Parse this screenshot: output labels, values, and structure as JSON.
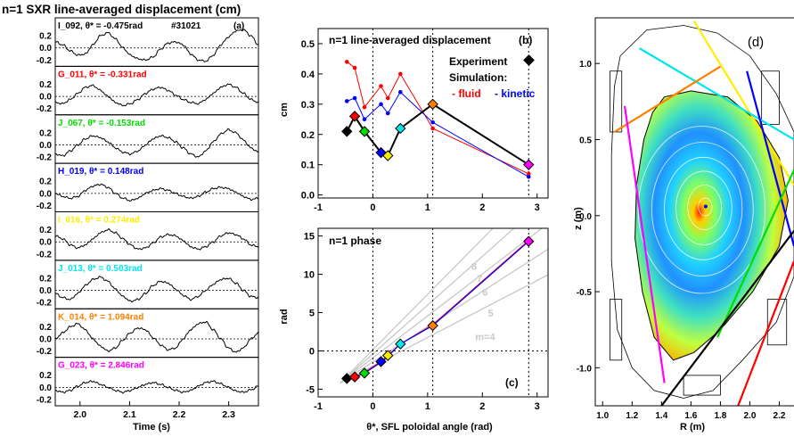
{
  "figure_title": "n=1 SXR line-averaged displacement (cm)",
  "chart_data": [
    {
      "id": "a",
      "type": "line",
      "panel_label": "(a)",
      "shot": "#31021",
      "xlabel": "Time (s)",
      "xlim": [
        1.95,
        2.36
      ],
      "x_ticks": [
        "2.0",
        "2.1",
        "2.2",
        "2.3"
      ],
      "y_ticks": [
        "0.2",
        "0.0",
        "-0.2"
      ],
      "color_map": {
        "black": "#000000",
        "red": "#ff0000",
        "green": "#00dd00",
        "blue": "#0000ff",
        "yellow": "#ffee00",
        "cyan": "#00e5ee",
        "orange": "#ff8000",
        "magenta": "#ff00ff"
      },
      "series": [
        {
          "name": "I_092, θ* = -0.475rad",
          "color": "black",
          "values": [
            0.1,
            0.05,
            -0.05,
            -0.12,
            -0.1,
            0.05,
            0.2,
            0.25,
            0.15,
            0.0,
            -0.12,
            -0.18,
            -0.2,
            -0.15,
            -0.02,
            0.08,
            0.1,
            0.05,
            -0.1,
            -0.2,
            -0.22,
            -0.12,
            0.05,
            0.18,
            0.28,
            0.3,
            0.2,
            0.05
          ]
        },
        {
          "name": "G_011, θ* = -0.331rad",
          "color": "red",
          "values": [
            -0.1,
            -0.12,
            -0.05,
            0.05,
            0.15,
            0.18,
            0.1,
            0.0,
            -0.1,
            -0.15,
            -0.12,
            -0.05,
            0.05,
            0.12,
            0.15,
            0.1,
            0.02,
            -0.05,
            -0.1,
            -0.12,
            -0.05,
            0.05,
            0.15,
            0.2,
            0.15,
            0.05,
            -0.05,
            -0.1
          ]
        },
        {
          "name": "J_067, θ* = -0.153rad",
          "color": "green",
          "values": [
            -0.15,
            -0.18,
            -0.1,
            0.0,
            0.1,
            0.15,
            0.12,
            0.05,
            -0.05,
            -0.12,
            -0.15,
            -0.1,
            0.0,
            0.1,
            0.15,
            0.12,
            0.05,
            -0.05,
            -0.15,
            -0.2,
            -0.1,
            0.05,
            0.18,
            0.25,
            0.2,
            0.08,
            -0.05,
            -0.12
          ]
        },
        {
          "name": "H_019, θ* = 0.148rad",
          "color": "blue",
          "values": [
            0.0,
            -0.05,
            -0.08,
            -0.05,
            0.05,
            0.12,
            0.15,
            0.1,
            0.0,
            -0.08,
            -0.12,
            -0.08,
            0.0,
            0.05,
            0.08,
            0.05,
            0.0,
            -0.05,
            -0.08,
            -0.05,
            0.02,
            0.08,
            0.1,
            0.08,
            0.02,
            -0.05,
            -0.1,
            -0.08
          ]
        },
        {
          "name": "I_016, θ* = 0.274rad",
          "color": "yellow",
          "values": [
            0.1,
            0.05,
            -0.05,
            -0.1,
            -0.05,
            0.05,
            0.15,
            0.2,
            0.15,
            0.05,
            -0.05,
            -0.12,
            -0.1,
            -0.02,
            0.08,
            0.12,
            0.1,
            0.02,
            -0.08,
            -0.12,
            -0.08,
            0.0,
            0.1,
            0.15,
            0.12,
            0.05,
            -0.05,
            -0.08
          ]
        },
        {
          "name": "J_013, θ* = 0.503rad",
          "color": "cyan",
          "values": [
            -0.05,
            -0.12,
            -0.15,
            -0.05,
            0.08,
            0.18,
            0.22,
            0.15,
            0.02,
            -0.1,
            -0.18,
            -0.15,
            -0.05,
            0.08,
            0.15,
            0.12,
            0.02,
            -0.08,
            -0.15,
            -0.1,
            0.0,
            0.1,
            0.18,
            0.2,
            0.12,
            0.0,
            -0.1,
            -0.12
          ]
        },
        {
          "name": "K_014, θ* = 1.094rad",
          "color": "orange",
          "values": [
            0.0,
            0.1,
            0.2,
            0.25,
            0.15,
            0.0,
            -0.12,
            -0.2,
            -0.15,
            -0.02,
            0.1,
            0.18,
            0.15,
            0.02,
            -0.1,
            -0.18,
            -0.15,
            0.0,
            0.15,
            0.25,
            0.28,
            0.15,
            0.0,
            -0.15,
            -0.22,
            -0.15,
            0.0,
            0.1
          ]
        },
        {
          "name": "G_023, θ* = 2.846rad",
          "color": "magenta",
          "values": [
            -0.05,
            -0.08,
            -0.05,
            0.02,
            0.08,
            0.1,
            0.05,
            0.0,
            -0.05,
            -0.08,
            -0.05,
            0.0,
            0.05,
            0.08,
            0.05,
            0.0,
            -0.05,
            -0.08,
            -0.05,
            0.02,
            0.08,
            0.1,
            0.06,
            0.0,
            -0.06,
            -0.08,
            -0.04,
            0.02
          ]
        }
      ]
    },
    {
      "id": "b",
      "type": "line",
      "title": "n=1 line-averaged displacement",
      "panel_label": "(b)",
      "ylabel": "cm",
      "xlim": [
        -1,
        3.2
      ],
      "ylim": [
        -0.01,
        0.55
      ],
      "x_ticks": [
        -1,
        0,
        1,
        2,
        3
      ],
      "y_ticks": [
        "0.0",
        "0.1",
        "0.2",
        "0.3",
        "0.4",
        "0.5"
      ],
      "legend": {
        "experiment": "Experiment",
        "simulation": "Simulation:",
        "fluid": "- fluid",
        "kinetic": "- kinetic"
      },
      "series": [
        {
          "color": "#ff0000",
          "x": [
            -0.475,
            -0.331,
            -0.153,
            0.148,
            0.274,
            0.503,
            1.094,
            2.846
          ],
          "y": [
            0.44,
            0.42,
            0.29,
            0.36,
            0.32,
            0.4,
            0.22,
            0.07
          ]
        },
        {
          "color": "#0000ff",
          "x": [
            -0.475,
            -0.331,
            -0.153,
            0.148,
            0.274,
            0.503,
            1.094,
            2.846
          ],
          "y": [
            0.31,
            0.32,
            0.25,
            0.3,
            0.27,
            0.34,
            0.24,
            0.06
          ]
        },
        {
          "name": "Experiment",
          "color": "#000000",
          "x": [
            -0.475,
            -0.331,
            -0.153,
            0.148,
            0.274,
            0.503,
            1.094,
            2.846
          ],
          "y": [
            0.21,
            0.26,
            0.21,
            0.14,
            0.13,
            0.22,
            0.3,
            0.1
          ]
        }
      ],
      "vlines": [
        0,
        1.094,
        2.846
      ]
    },
    {
      "id": "c",
      "type": "line",
      "title": "n=1 phase",
      "panel_label": "(c)",
      "ylabel": "rad",
      "xlabel": "θ*, SFL poloidal angle (rad)",
      "xlim": [
        -1,
        3.2
      ],
      "ylim": [
        -6,
        16
      ],
      "x_ticks": [
        -1,
        0,
        1,
        2,
        3
      ],
      "y_ticks": [
        -5,
        0,
        5,
        10,
        15
      ],
      "m_lines": [
        {
          "m": 4,
          "label": "m=4"
        },
        {
          "m": 5,
          "label": "5"
        },
        {
          "m": 6,
          "label": "6"
        },
        {
          "m": 7,
          "label": "7"
        },
        {
          "m": 8,
          "label": "8"
        }
      ],
      "series": [
        {
          "color": "#ff0000",
          "x": [
            -0.475,
            -0.331,
            -0.153,
            0.148,
            0.274,
            0.503,
            1.094,
            2.846
          ],
          "y": [
            -3.5,
            -3.4,
            -2.8,
            -1.4,
            -0.6,
            0.9,
            3.4,
            14.4
          ]
        },
        {
          "color": "#0000ff",
          "x": [
            -0.475,
            -0.331,
            -0.153,
            0.148,
            0.274,
            0.503,
            1.094,
            2.846
          ],
          "y": [
            -3.6,
            -3.4,
            -2.9,
            -1.5,
            -0.7,
            0.9,
            3.3,
            14.3
          ]
        },
        {
          "name": "Experiment",
          "color": "#000000",
          "x": [
            -0.475,
            -0.331,
            -0.153,
            0.148,
            0.274,
            0.503,
            1.094,
            2.846
          ],
          "y": [
            -3.6,
            -3.4,
            -2.9,
            -1.4,
            -0.6,
            0.9,
            3.3,
            14.3
          ]
        }
      ]
    },
    {
      "id": "d",
      "type": "heatmap",
      "panel_label": "(d)",
      "xlabel": "R (m)",
      "ylabel": "z (m)",
      "xlim": [
        0.95,
        2.3
      ],
      "ylim": [
        -1.25,
        1.3
      ],
      "x_ticks": [
        "1.0",
        "1.2",
        "1.4",
        "1.6",
        "1.8",
        "2.0",
        "2.2"
      ],
      "y_ticks": [
        "1.0",
        "0.5",
        "0.0",
        "-0.5",
        "-1.0"
      ],
      "chords": [
        {
          "color": "#ffee00",
          "from": [
            1.62,
            1.28
          ],
          "to": [
            2.3,
            0.2
          ]
        },
        {
          "color": "#00e5ee",
          "from": [
            1.25,
            1.1
          ],
          "to": [
            2.3,
            0.5
          ]
        },
        {
          "color": "#ff8000",
          "from": [
            1.08,
            0.55
          ],
          "to": [
            1.8,
            0.98
          ]
        },
        {
          "color": "#ff00ff",
          "from": [
            1.15,
            0.72
          ],
          "to": [
            1.42,
            -1.1
          ]
        },
        {
          "color": "#0000ff",
          "from": [
            1.98,
            0.95
          ],
          "to": [
            2.3,
            -0.2
          ]
        },
        {
          "color": "#00dd00",
          "from": [
            1.78,
            -0.8
          ],
          "to": [
            2.3,
            0.3
          ]
        },
        {
          "color": "#ff0000",
          "from": [
            1.92,
            -1.25
          ],
          "to": [
            2.3,
            -0.3
          ]
        },
        {
          "color": "#000000",
          "from": [
            1.4,
            -1.25
          ],
          "to": [
            2.3,
            -0.1
          ]
        }
      ]
    }
  ]
}
